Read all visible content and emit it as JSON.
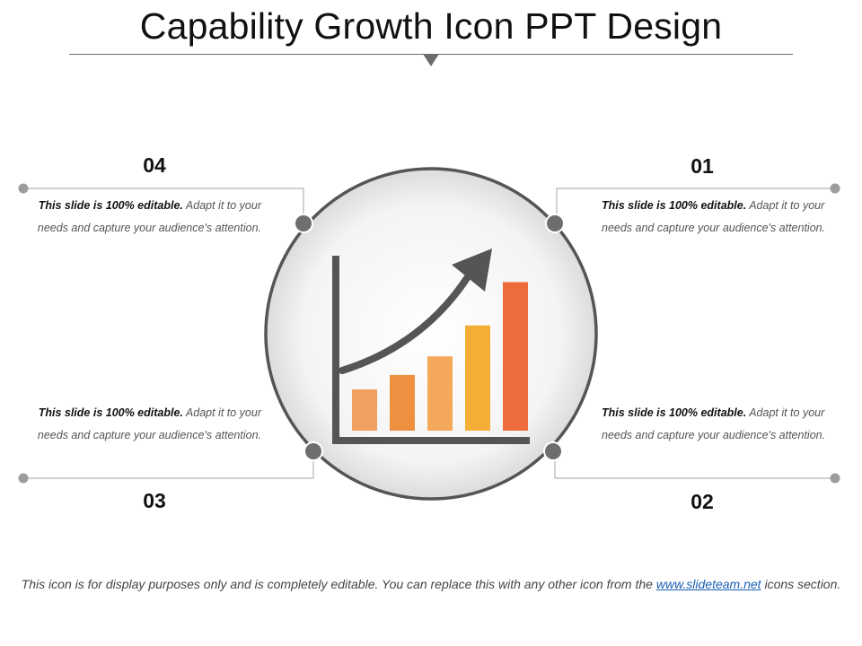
{
  "title": "Capability Growth Icon PPT Design",
  "items": [
    {
      "number": "01",
      "bold": "This slide is 100% editable.",
      "text": " Adapt it to your needs and capture your audience's attention."
    },
    {
      "number": "02",
      "bold": "This slide is 100% editable.",
      "text": " Adapt it to your needs and capture your audience's attention."
    },
    {
      "number": "03",
      "bold": "This slide is 100% editable.",
      "text": " Adapt it to your needs and capture your audience's attention."
    },
    {
      "number": "04",
      "bold": "This slide is 100% editable.",
      "text": " Adapt it to your needs and capture your audience's attention."
    }
  ],
  "icon": {
    "name": "bar-chart-growth-arrow-icon",
    "bars": [
      {
        "value": 1.0,
        "color": "#f0a060"
      },
      {
        "value": 1.35,
        "color": "#ef9040"
      },
      {
        "value": 1.8,
        "color": "#f4a85a"
      },
      {
        "value": 2.55,
        "color": "#f5ae35"
      },
      {
        "value": 3.6,
        "color": "#ee6b3e"
      }
    ],
    "arrow_color": "#555555",
    "axis_color": "#555555"
  },
  "footer": {
    "text_before": "This icon is for display purposes only and is completely editable. You can replace this with  any other icon from the ",
    "link": "www.slideteam.net",
    "text_after": "  icons section."
  }
}
